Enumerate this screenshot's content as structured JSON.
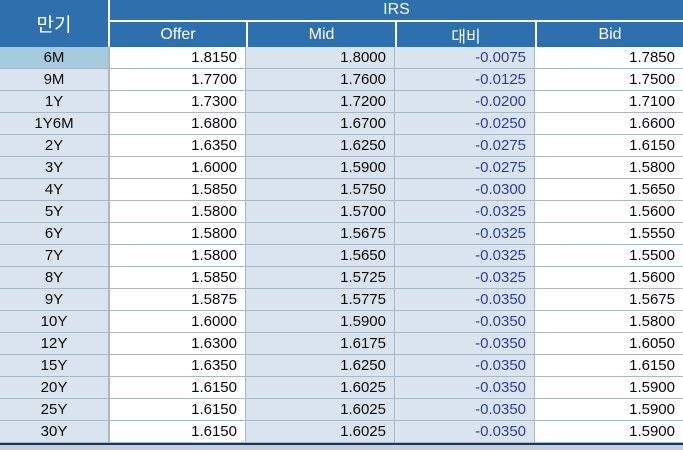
{
  "table": {
    "maturity_header": "만기",
    "group_header": "IRS",
    "columns": [
      "Offer",
      "Mid",
      "대비",
      "Bid"
    ],
    "selected_maturity": "6M",
    "rows": [
      {
        "maturity": "6M",
        "offer": "1.8150",
        "mid": "1.8000",
        "change": "-0.0075",
        "bid": "1.7850"
      },
      {
        "maturity": "9M",
        "offer": "1.7700",
        "mid": "1.7600",
        "change": "-0.0125",
        "bid": "1.7500"
      },
      {
        "maturity": "1Y",
        "offer": "1.7300",
        "mid": "1.7200",
        "change": "-0.0200",
        "bid": "1.7100"
      },
      {
        "maturity": "1Y6M",
        "offer": "1.6800",
        "mid": "1.6700",
        "change": "-0.0250",
        "bid": "1.6600"
      },
      {
        "maturity": "2Y",
        "offer": "1.6350",
        "mid": "1.6250",
        "change": "-0.0275",
        "bid": "1.6150"
      },
      {
        "maturity": "3Y",
        "offer": "1.6000",
        "mid": "1.5900",
        "change": "-0.0275",
        "bid": "1.5800"
      },
      {
        "maturity": "4Y",
        "offer": "1.5850",
        "mid": "1.5750",
        "change": "-0.0300",
        "bid": "1.5650"
      },
      {
        "maturity": "5Y",
        "offer": "1.5800",
        "mid": "1.5700",
        "change": "-0.0325",
        "bid": "1.5600"
      },
      {
        "maturity": "6Y",
        "offer": "1.5800",
        "mid": "1.5675",
        "change": "-0.0325",
        "bid": "1.5550"
      },
      {
        "maturity": "7Y",
        "offer": "1.5800",
        "mid": "1.5650",
        "change": "-0.0325",
        "bid": "1.5500"
      },
      {
        "maturity": "8Y",
        "offer": "1.5850",
        "mid": "1.5725",
        "change": "-0.0325",
        "bid": "1.5600"
      },
      {
        "maturity": "9Y",
        "offer": "1.5875",
        "mid": "1.5775",
        "change": "-0.0350",
        "bid": "1.5675"
      },
      {
        "maturity": "10Y",
        "offer": "1.6000",
        "mid": "1.5900",
        "change": "-0.0350",
        "bid": "1.5800"
      },
      {
        "maturity": "12Y",
        "offer": "1.6300",
        "mid": "1.6175",
        "change": "-0.0350",
        "bid": "1.6050"
      },
      {
        "maturity": "15Y",
        "offer": "1.6350",
        "mid": "1.6250",
        "change": "-0.0350",
        "bid": "1.6150"
      },
      {
        "maturity": "20Y",
        "offer": "1.6150",
        "mid": "1.6025",
        "change": "-0.0350",
        "bid": "1.5900"
      },
      {
        "maturity": "25Y",
        "offer": "1.6150",
        "mid": "1.6025",
        "change": "-0.0350",
        "bid": "1.5900"
      },
      {
        "maturity": "30Y",
        "offer": "1.6150",
        "mid": "1.6025",
        "change": "-0.0350",
        "bid": "1.5900"
      }
    ]
  },
  "colors": {
    "header-bg": "#2E6FAD",
    "header-text": "#FFFFFF",
    "band-bg": "#DAE4EF",
    "selected-cell-bg": "#A6CBDF",
    "change-text": "#2F3D9E",
    "grid-line": "#AAB8C6",
    "bottom-line": "#17375E"
  }
}
